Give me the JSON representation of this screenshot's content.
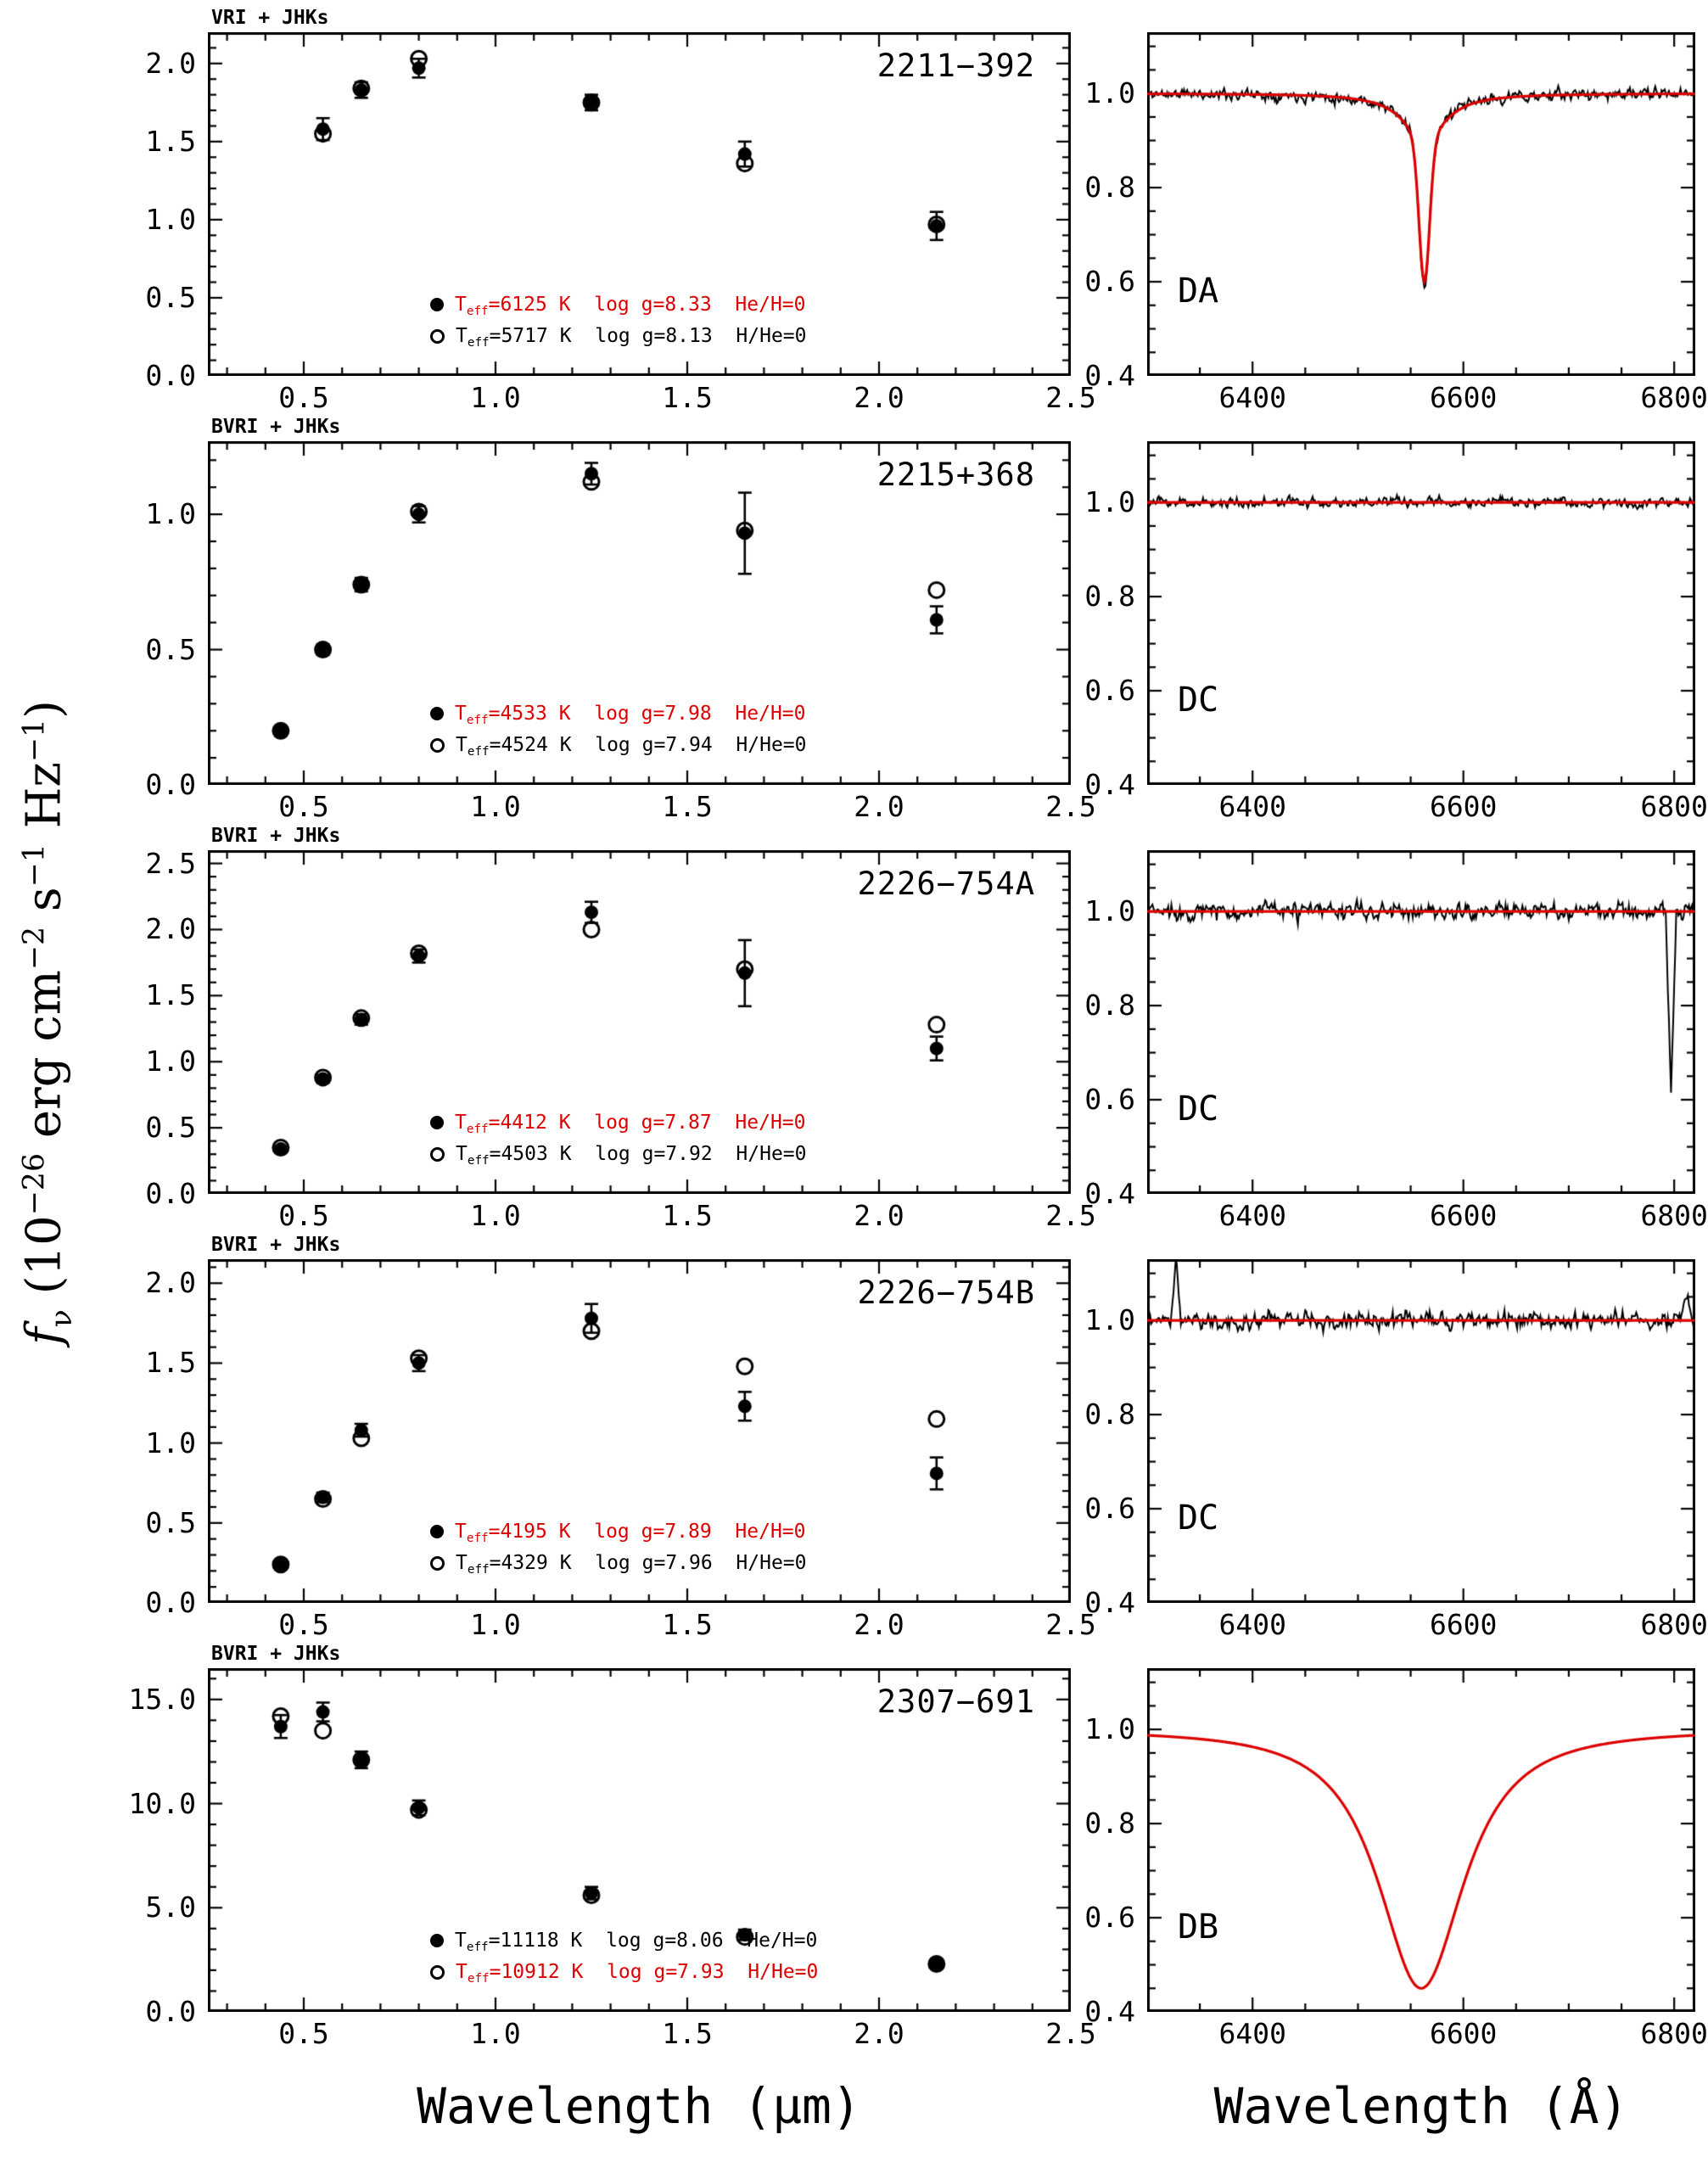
{
  "figure": {
    "x_axis_label_left": "Wavelength (μm)",
    "x_axis_label_right": "Wavelength (Å)",
    "y_axis_label": {
      "italic_lead": "f",
      "rest": "_[ν] (10^[−26] erg cm^[−2] s^[−1] Hz^[−1])"
    },
    "colors": {
      "model": "#dd0000",
      "data": "#000000",
      "background": "#ffffff"
    }
  },
  "chart_data": [
    {
      "object": "2211−392",
      "bands": "VRI + JHKs",
      "sed": {
        "type": "scatter",
        "title": "2211−392",
        "xlim": [
          0.25,
          2.5
        ],
        "xticks": [
          0.5,
          1.0,
          1.5,
          2.0,
          2.5
        ],
        "xtick_labels": [
          "0.5",
          "1.0",
          "1.5",
          "2.0",
          "2.5"
        ],
        "x_minor": 0.1,
        "ylim": [
          0,
          2.2
        ],
        "yticks": [
          0.0,
          0.5,
          1.0,
          1.5,
          2.0
        ],
        "ytick_labels": [
          "0.0",
          "0.5",
          "1.0",
          "1.5",
          "2.0"
        ],
        "y_minor": 0.1,
        "x": [
          0.55,
          0.65,
          0.8,
          1.25,
          1.65,
          2.15
        ],
        "filled": [
          1.58,
          1.83,
          1.97,
          1.75,
          1.42,
          0.96
        ],
        "errors": [
          0.07,
          0.05,
          0.06,
          0.05,
          0.08,
          0.09
        ],
        "open": [
          1.55,
          1.84,
          2.03,
          1.75,
          1.36,
          0.97
        ],
        "legend": [
          {
            "marker": "filled",
            "color": "#dd0000",
            "text": "T_[eff]=6125 K  log g=8.33  He/H=0"
          },
          {
            "marker": "open",
            "color": "#000000",
            "text": "T_[eff]=5717 K  log g=8.13  H/He=0"
          }
        ]
      },
      "spectrum": {
        "type": "line",
        "class": "DA",
        "xlim": [
          6300,
          6820
        ],
        "xticks": [
          6400,
          6600,
          6800
        ],
        "xtick_labels": [
          "6400",
          "6600",
          "6800"
        ],
        "x_minor": 50,
        "ylim": [
          0.4,
          1.13
        ],
        "yticks": [
          0.4,
          0.6,
          0.8,
          1.0
        ],
        "ytick_labels": [
          "0.4",
          "0.6",
          "0.8",
          "1.0"
        ],
        "y_minor": 0.05,
        "has_observation": true,
        "noise": 0.008,
        "seed": 11,
        "absorption": {
          "center": 6563,
          "core_depth": 0.3,
          "core_sigma": 5,
          "wing_depth": 0.1,
          "wing_gamma": 24
        },
        "model_line": true,
        "artifacts": []
      }
    },
    {
      "object": "2215+368",
      "bands": "BVRI + JHKs",
      "sed": {
        "type": "scatter",
        "title": "2215+368",
        "xlim": [
          0.25,
          2.5
        ],
        "xticks": [
          0.5,
          1.0,
          1.5,
          2.0,
          2.5
        ],
        "xtick_labels": [
          "0.5",
          "1.0",
          "1.5",
          "2.0",
          "2.5"
        ],
        "x_minor": 0.1,
        "ylim": [
          0,
          1.27
        ],
        "yticks": [
          0.0,
          0.5,
          1.0
        ],
        "ytick_labels": [
          "0.0",
          "0.5",
          "1.0"
        ],
        "y_minor": 0.1,
        "x": [
          0.44,
          0.55,
          0.65,
          0.8,
          1.25,
          1.65,
          2.15
        ],
        "filled": [
          0.2,
          0.5,
          0.74,
          1.0,
          1.15,
          0.93,
          0.61
        ],
        "errors": [
          0.015,
          0.02,
          0.025,
          0.03,
          0.04,
          0.15,
          0.05
        ],
        "open": [
          0.2,
          0.5,
          0.74,
          1.01,
          1.12,
          0.94,
          0.72
        ],
        "legend": [
          {
            "marker": "filled",
            "color": "#dd0000",
            "text": "T_[eff]=4533 K  log g=7.98  He/H=0"
          },
          {
            "marker": "open",
            "color": "#000000",
            "text": "T_[eff]=4524 K  log g=7.94  H/He=0"
          }
        ]
      },
      "spectrum": {
        "type": "line",
        "class": "DC",
        "xlim": [
          6300,
          6820
        ],
        "xticks": [
          6400,
          6600,
          6800
        ],
        "xtick_labels": [
          "6400",
          "6600",
          "6800"
        ],
        "x_minor": 50,
        "ylim": [
          0.4,
          1.13
        ],
        "yticks": [
          0.4,
          0.6,
          0.8,
          1.0
        ],
        "ytick_labels": [
          "0.4",
          "0.6",
          "0.8",
          "1.0"
        ],
        "y_minor": 0.05,
        "has_observation": true,
        "noise": 0.007,
        "seed": 23,
        "absorption": null,
        "model_line": true,
        "artifacts": []
      }
    },
    {
      "object": "2226−754A",
      "bands": "BVRI + JHKs",
      "sed": {
        "type": "scatter",
        "title": "2226−754A",
        "xlim": [
          0.25,
          2.5
        ],
        "xticks": [
          0.5,
          1.0,
          1.5,
          2.0,
          2.5
        ],
        "xtick_labels": [
          "0.5",
          "1.0",
          "1.5",
          "2.0",
          "2.5"
        ],
        "x_minor": 0.1,
        "ylim": [
          0,
          2.6
        ],
        "yticks": [
          0.0,
          0.5,
          1.0,
          1.5,
          2.0,
          2.5
        ],
        "ytick_labels": [
          "0.0",
          "0.5",
          "1.0",
          "1.5",
          "2.0",
          "2.5"
        ],
        "y_minor": 0.1,
        "x": [
          0.44,
          0.55,
          0.65,
          0.8,
          1.25,
          1.65,
          2.15
        ],
        "filled": [
          0.34,
          0.87,
          1.32,
          1.8,
          2.13,
          1.67,
          1.1
        ],
        "errors": [
          0.02,
          0.03,
          0.04,
          0.05,
          0.08,
          0.25,
          0.09
        ],
        "open": [
          0.35,
          0.88,
          1.33,
          1.82,
          2.0,
          1.7,
          1.28
        ],
        "legend": [
          {
            "marker": "filled",
            "color": "#dd0000",
            "text": "T_[eff]=4412 K  log g=7.87  He/H=0"
          },
          {
            "marker": "open",
            "color": "#000000",
            "text": "T_[eff]=4503 K  log g=7.92  H/He=0"
          }
        ]
      },
      "spectrum": {
        "type": "line",
        "class": "DC",
        "xlim": [
          6300,
          6820
        ],
        "xticks": [
          6400,
          6600,
          6800
        ],
        "xtick_labels": [
          "6400",
          "6600",
          "6800"
        ],
        "x_minor": 50,
        "ylim": [
          0.4,
          1.13
        ],
        "yticks": [
          0.4,
          0.6,
          0.8,
          1.0
        ],
        "ytick_labels": [
          "0.4",
          "0.6",
          "0.8",
          "1.0"
        ],
        "y_minor": 0.05,
        "has_observation": true,
        "noise": 0.012,
        "seed": 37,
        "absorption": null,
        "model_line": true,
        "artifacts": [
          {
            "x": 6797,
            "amp": -0.4,
            "width": 5
          }
        ]
      }
    },
    {
      "object": "2226−754B",
      "bands": "BVRI + JHKs",
      "sed": {
        "type": "scatter",
        "title": "2226−754B",
        "xlim": [
          0.25,
          2.5
        ],
        "xticks": [
          0.5,
          1.0,
          1.5,
          2.0,
          2.5
        ],
        "xtick_labels": [
          "0.5",
          "1.0",
          "1.5",
          "2.0",
          "2.5"
        ],
        "x_minor": 0.1,
        "ylim": [
          0,
          2.15
        ],
        "yticks": [
          0.0,
          0.5,
          1.0,
          1.5,
          2.0
        ],
        "ytick_labels": [
          "0.0",
          "0.5",
          "1.0",
          "1.5",
          "2.0"
        ],
        "y_minor": 0.1,
        "x": [
          0.44,
          0.55,
          0.65,
          0.8,
          1.25,
          1.65,
          2.15
        ],
        "filled": [
          0.24,
          0.66,
          1.08,
          1.5,
          1.78,
          1.23,
          0.81
        ],
        "errors": [
          0.015,
          0.03,
          0.04,
          0.05,
          0.09,
          0.09,
          0.1
        ],
        "open": [
          0.24,
          0.65,
          1.03,
          1.53,
          1.7,
          1.48,
          1.15
        ],
        "legend": [
          {
            "marker": "filled",
            "color": "#dd0000",
            "text": "T_[eff]=4195 K  log g=7.89  He/H=0"
          },
          {
            "marker": "open",
            "color": "#000000",
            "text": "T_[eff]=4329 K  log g=7.96  H/He=0"
          }
        ]
      },
      "spectrum": {
        "type": "line",
        "class": "DC",
        "xlim": [
          6300,
          6820
        ],
        "xticks": [
          6400,
          6600,
          6800
        ],
        "xtick_labels": [
          "6400",
          "6600",
          "6800"
        ],
        "x_minor": 50,
        "ylim": [
          0.4,
          1.13
        ],
        "yticks": [
          0.4,
          0.6,
          0.8,
          1.0
        ],
        "ytick_labels": [
          "0.4",
          "0.6",
          "0.8",
          "1.0"
        ],
        "y_minor": 0.05,
        "has_observation": true,
        "noise": 0.012,
        "seed": 51,
        "absorption": null,
        "model_line": true,
        "artifacts": [
          {
            "x": 6327,
            "amp": 0.14,
            "width": 5
          },
          {
            "x": 6812,
            "amp": 0.06,
            "width": 6
          }
        ]
      }
    },
    {
      "object": "2307−691",
      "bands": "BVRI + JHKs",
      "sed": {
        "type": "scatter",
        "title": "2307−691",
        "xlim": [
          0.25,
          2.5
        ],
        "xticks": [
          0.5,
          1.0,
          1.5,
          2.0,
          2.5
        ],
        "xtick_labels": [
          "0.5",
          "1.0",
          "1.5",
          "2.0",
          "2.5"
        ],
        "x_minor": 0.1,
        "ylim": [
          0,
          16.5
        ],
        "yticks": [
          0.0,
          5.0,
          10.0,
          15.0
        ],
        "ytick_labels": [
          "0.0",
          "5.0",
          "10.0",
          "15.0"
        ],
        "y_minor": 1.0,
        "x": [
          0.44,
          0.55,
          0.65,
          0.8,
          1.25,
          1.65,
          2.15
        ],
        "filled": [
          13.7,
          14.4,
          12.1,
          9.8,
          5.7,
          3.7,
          2.3
        ],
        "errors": [
          0.55,
          0.45,
          0.4,
          0.35,
          0.3,
          0.25,
          0.2
        ],
        "open": [
          14.2,
          13.5,
          12.1,
          9.7,
          5.6,
          3.6,
          2.3
        ],
        "legend": [
          {
            "marker": "filled",
            "color": "#000000",
            "text": "T_[eff]=11118 K  log g=8.06  He/H=0"
          },
          {
            "marker": "open",
            "color": "#dd0000",
            "text": "T_[eff]=10912 K  log g=7.93  H/He=0"
          }
        ]
      },
      "spectrum": {
        "type": "line",
        "class": "DB",
        "xlim": [
          6300,
          6820
        ],
        "xticks": [
          6400,
          6600,
          6800
        ],
        "xtick_labels": [
          "6400",
          "6600",
          "6800"
        ],
        "x_minor": 50,
        "ylim": [
          0.4,
          1.13
        ],
        "yticks": [
          0.4,
          0.6,
          0.8,
          1.0
        ],
        "ytick_labels": [
          "0.4",
          "0.6",
          "0.8",
          "1.0"
        ],
        "y_minor": 0.05,
        "has_observation": false,
        "model_profile": {
          "center": 6560,
          "depth": 0.55,
          "gamma": 55,
          "power": 1.2
        },
        "model_line": true,
        "artifacts": []
      }
    }
  ]
}
